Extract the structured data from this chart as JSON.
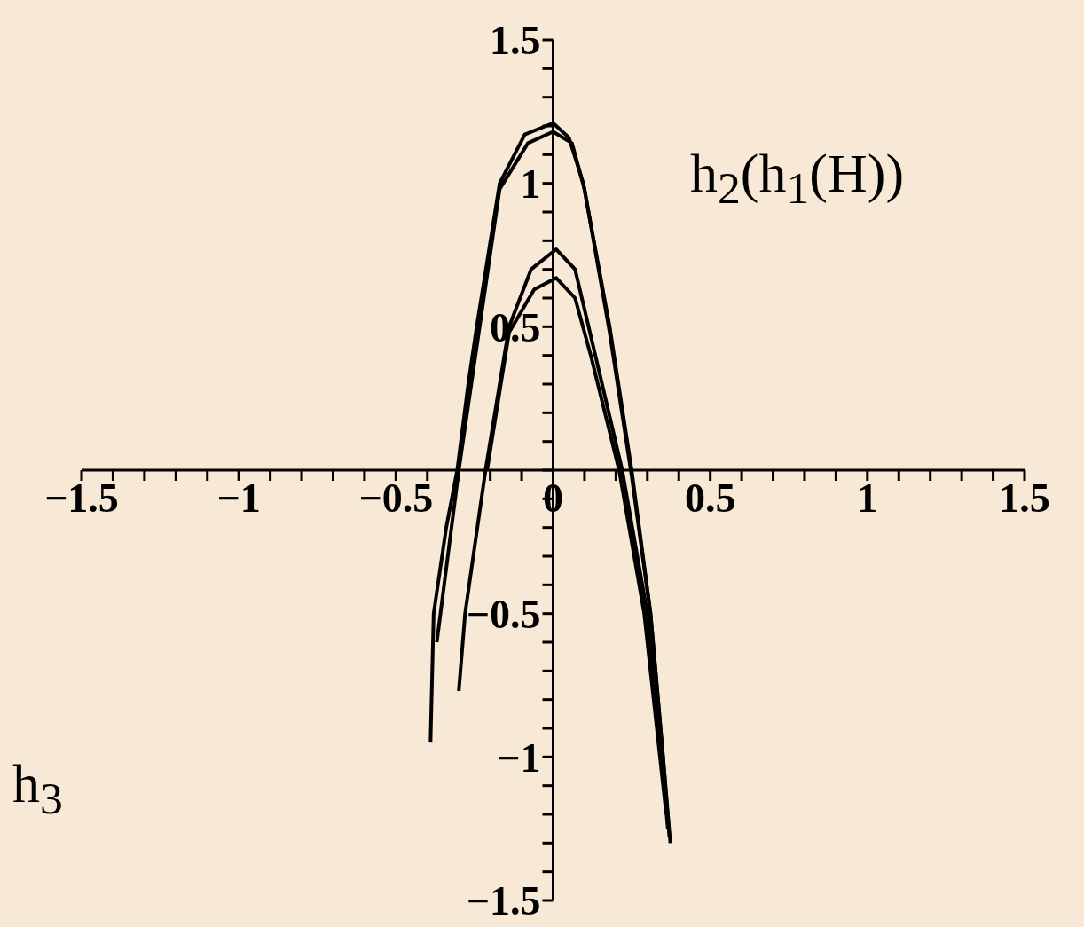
{
  "chart_data": {
    "type": "line",
    "annotations": [
      "h$_{2}$(h$_{1}$(H))",
      "h$_{3}$"
    ],
    "xlim": [
      -1.5,
      1.5
    ],
    "ylim": [
      -1.5,
      1.5
    ],
    "xticks": [
      {
        "value": -1.5,
        "label": "−1.5"
      },
      {
        "value": -1.4,
        "label": null
      },
      {
        "value": -1.3,
        "label": null
      },
      {
        "value": -1.2,
        "label": null
      },
      {
        "value": -1.1,
        "label": null
      },
      {
        "value": -1,
        "label": "−1"
      },
      {
        "value": -0.9,
        "label": null
      },
      {
        "value": -0.8,
        "label": null
      },
      {
        "value": -0.7,
        "label": null
      },
      {
        "value": -0.6,
        "label": null
      },
      {
        "value": -0.5,
        "label": "−0.5"
      },
      {
        "value": -0.4,
        "label": null
      },
      {
        "value": -0.3,
        "label": null
      },
      {
        "value": -0.2,
        "label": null
      },
      {
        "value": -0.1,
        "label": null
      },
      {
        "value": 0,
        "label": "0"
      },
      {
        "value": 0.1,
        "label": null
      },
      {
        "value": 0.2,
        "label": null
      },
      {
        "value": 0.3,
        "label": null
      },
      {
        "value": 0.4,
        "label": null
      },
      0.5,
      {
        "value": 0.6,
        "label": null
      },
      {
        "value": 0.7,
        "label": null
      },
      {
        "value": 0.8,
        "label": null
      },
      {
        "value": 0.9,
        "label": null
      },
      1,
      {
        "value": 1.1,
        "label": null
      },
      {
        "value": 1.2,
        "label": null
      },
      {
        "value": 1.3,
        "label": null
      },
      {
        "value": 1.4,
        "label": null
      },
      1.5
    ],
    "yticks": [
      {
        "value": -1.5,
        "label": "−1.5"
      },
      {
        "value": -1.4,
        "label": null
      },
      {
        "value": -1.3,
        "label": null
      },
      {
        "value": -1.2,
        "label": null
      },
      {
        "value": -1.1,
        "label": null
      },
      {
        "value": -1,
        "label": "−1"
      },
      {
        "value": -0.9,
        "label": null
      },
      {
        "value": -0.8,
        "label": null
      },
      {
        "value": -0.7,
        "label": null
      },
      {
        "value": -0.6,
        "label": null
      },
      {
        "value": -0.5,
        "label": "−0.5"
      },
      {
        "value": -0.4,
        "label": null
      },
      {
        "value": -0.3,
        "label": null
      },
      {
        "value": -0.2,
        "label": null
      },
      {
        "value": -0.1,
        "label": null
      },
      {
        "value": 0,
        "label": null
      },
      {
        "value": 0.1,
        "label": null
      },
      {
        "value": 0.2,
        "label": null
      },
      {
        "value": 0.3,
        "label": null
      },
      {
        "value": 0.4,
        "label": null
      },
      0.5,
      {
        "value": 0.6,
        "label": null
      },
      {
        "value": 0.7,
        "label": null
      },
      {
        "value": 0.8,
        "label": null
      },
      {
        "value": 0.9,
        "label": null
      },
      1,
      {
        "value": 1.1,
        "label": null
      },
      {
        "value": 1.2,
        "label": null
      },
      {
        "value": 1.3,
        "label": null
      },
      {
        "value": 1.4,
        "label": null
      },
      1.5
    ],
    "series": [
      {
        "color": "#000000",
        "x": [
          -0.39,
          -0.38,
          -0.34,
          -0.305,
          -0.27,
          -0.243,
          -0.17,
          -0.09,
          0,
          0.05,
          0.096,
          0.18,
          0.25,
          0.31,
          0.35,
          0.373
        ],
        "values": [
          -0.95,
          -0.5,
          -0.2,
          0,
          0.3,
          0.5,
          1.0,
          1.17,
          1.21,
          1.16,
          1.0,
          0.5,
          0,
          -0.5,
          -1.0,
          -1.3
        ]
      },
      {
        "color": "#000000",
        "x": [
          -0.37,
          -0.3,
          -0.17,
          -0.08,
          0,
          0.06,
          0.1,
          0.18,
          0.25,
          0.31,
          0.35,
          0.37
        ],
        "values": [
          -0.6,
          0,
          0.98,
          1.14,
          1.18,
          1.14,
          0.98,
          0.48,
          -0.02,
          -0.5,
          -1.0,
          -1.28
        ]
      },
      {
        "color": "#000000",
        "x": [
          -0.3,
          -0.28,
          -0.215,
          -0.14,
          -0.07,
          0.01,
          0.07,
          0.113,
          0.22,
          0.3,
          0.345,
          0.365
        ],
        "values": [
          -0.77,
          -0.5,
          0,
          0.5,
          0.7,
          0.77,
          0.7,
          0.5,
          0,
          -0.5,
          -1.0,
          -1.25
        ]
      },
      {
        "color": "#000000",
        "x": [
          -0.21,
          -0.14,
          -0.06,
          0.01,
          0.07,
          0.12,
          0.21,
          0.29,
          0.34,
          0.36
        ],
        "values": [
          0,
          0.48,
          0.63,
          0.67,
          0.6,
          0.4,
          0,
          -0.5,
          -1.0,
          -1.2
        ]
      }
    ]
  }
}
